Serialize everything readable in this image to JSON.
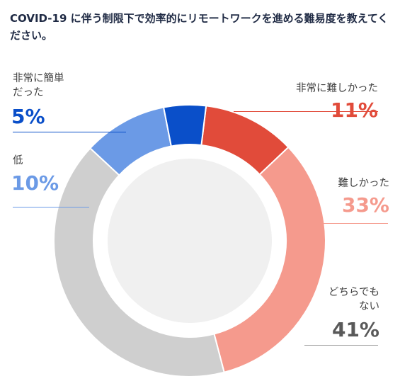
{
  "title": "COVID-19 に伴う制限下で効率的にリモートワークを進める難易度を教えてください。",
  "chart_data": {
    "type": "pie",
    "variant": "donut",
    "slices": [
      {
        "label": "非常に難しかった",
        "value": 11,
        "display": "11%",
        "color": "#e14b3a"
      },
      {
        "label": "難しかった",
        "value": 33,
        "display": "33%",
        "color": "#f59a8d"
      },
      {
        "label": "どちらでもない",
        "value": 41,
        "display": "41%",
        "color": "#cfcfcf"
      },
      {
        "label": "低",
        "value": 10,
        "display": "10%",
        "color": "#6b9ae6"
      },
      {
        "label": "非常に簡単だった",
        "value": 5,
        "display": "5%",
        "color": "#0a4fc9"
      }
    ]
  }
}
